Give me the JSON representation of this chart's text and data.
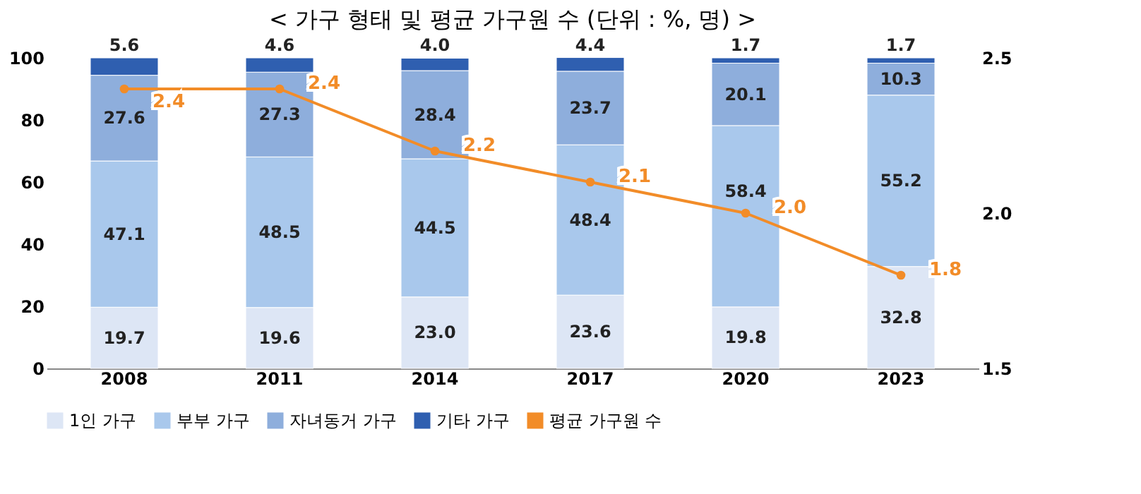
{
  "chart_data": {
    "type": "bar",
    "title": "< 가구 형태 및 평균 가구원 수 (단위 : %, 명) >",
    "categories": [
      "2008",
      "2011",
      "2014",
      "2017",
      "2020",
      "2023"
    ],
    "stacked": true,
    "data_labels": true,
    "legend": "bottom",
    "grid": false,
    "ylim": [
      0,
      100
    ],
    "yticks": [
      0,
      20,
      40,
      60,
      80,
      100
    ],
    "y2lim": [
      1.5,
      2.5
    ],
    "y2ticks": [
      {
        "value": 1.5,
        "label": "1.5"
      },
      {
        "value": 2,
        "label": "2.0"
      },
      {
        "value": 2.5,
        "label": "2.5"
      }
    ],
    "series": [
      {
        "name": "1인 가구",
        "color": "#dde6f5",
        "values": [
          19.7,
          19.6,
          23.0,
          23.6,
          19.8,
          32.8
        ],
        "value_labels": [
          "19.7",
          "19.6",
          "23.0",
          "23.6",
          "19.8",
          "32.8"
        ]
      },
      {
        "name": "부부 가구",
        "color": "#a9c8ec",
        "values": [
          47.1,
          48.5,
          44.5,
          48.4,
          58.4,
          55.2
        ],
        "value_labels": [
          "47.1",
          "48.5",
          "44.5",
          "48.4",
          "58.4",
          "55.2"
        ]
      },
      {
        "name": "자녀동거 가구",
        "color": "#8eaedc",
        "values": [
          27.6,
          27.3,
          28.4,
          23.7,
          20.1,
          10.3
        ],
        "value_labels": [
          "27.6",
          "27.3",
          "28.4",
          "23.7",
          "20.1",
          "10.3"
        ]
      },
      {
        "name": "기타 가구",
        "color": "#2f5fb0",
        "values": [
          5.6,
          4.6,
          4.0,
          4.4,
          1.7,
          1.7
        ],
        "value_labels": [
          "5.6",
          "4.6",
          "4.0",
          "4.4",
          "1.7",
          "1.7"
        ]
      },
      {
        "name": "평균 가구원 수",
        "type": "line",
        "axis": "y2",
        "marker": "circle",
        "line_style": "solid",
        "color": "#f28c28",
        "values": [
          2.4,
          2.4,
          2.2,
          2.1,
          2.0,
          1.8
        ],
        "value_labels": [
          "2.4",
          "2.4",
          "2.2",
          "2.1",
          "2.0",
          "1.8"
        ]
      }
    ]
  }
}
